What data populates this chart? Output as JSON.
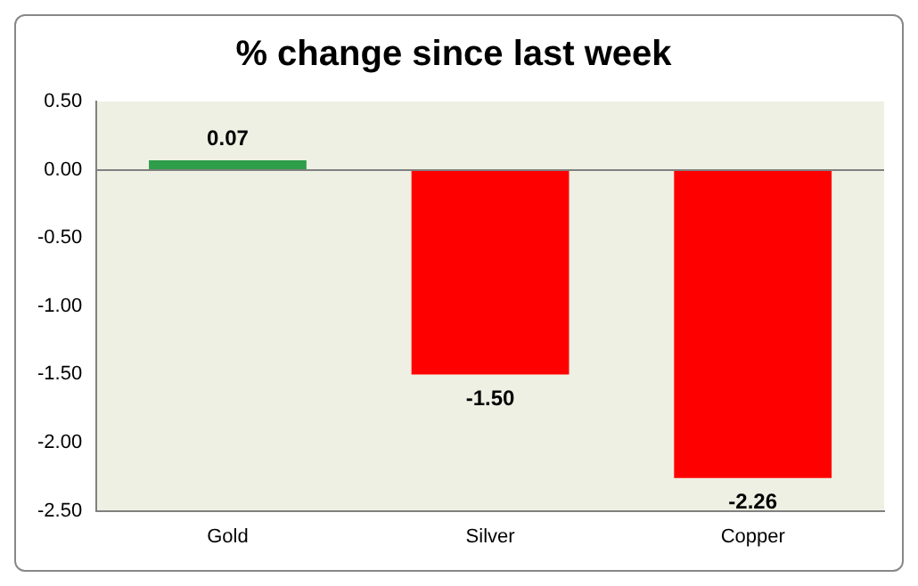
{
  "chart_data": {
    "type": "bar",
    "title": "% change since last week",
    "categories": [
      "Gold",
      "Silver",
      "Copper"
    ],
    "values": [
      0.07,
      -1.5,
      -2.26
    ],
    "colors": [
      "#2e9e4a",
      "#ff0000",
      "#ff0000"
    ],
    "value_labels": [
      "0.07",
      "-1.50",
      "-2.26"
    ],
    "ylim": [
      -2.5,
      0.5
    ],
    "yticks": [
      {
        "value": 0.5,
        "label": "0.50"
      },
      {
        "value": 0,
        "label": "0.00"
      },
      {
        "value": -0.5,
        "label": "-0.50"
      },
      {
        "value": -1,
        "label": "-1.00"
      },
      {
        "value": -1.5,
        "label": "-1.50"
      },
      {
        "value": -2,
        "label": "-2.00"
      },
      {
        "value": -2.5,
        "label": "-2.50"
      }
    ],
    "ref_lines": [
      {
        "axis": "y",
        "value": 0,
        "color": "#808080"
      }
    ],
    "grid": false,
    "legend": false
  }
}
